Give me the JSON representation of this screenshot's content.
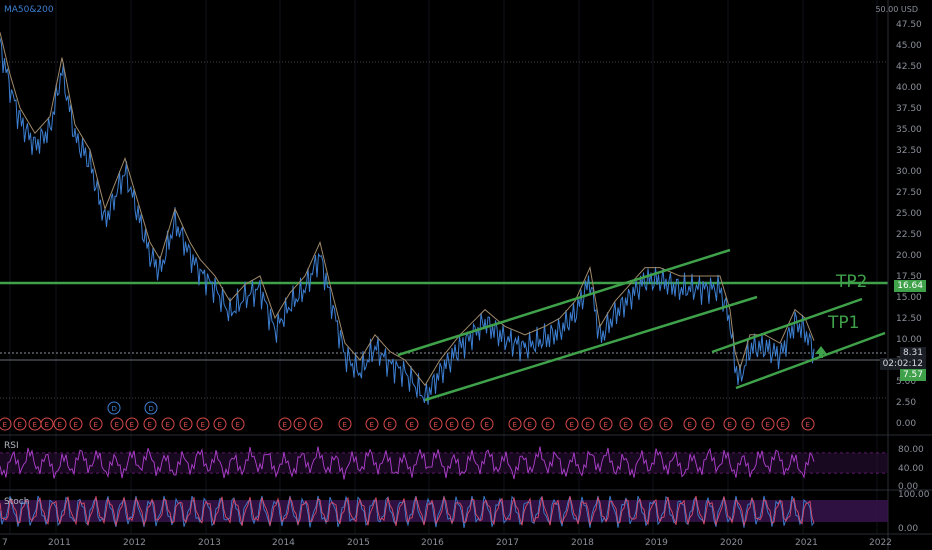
{
  "header": {
    "indicator_label": "MA50&200",
    "currency_label": "50.00 USD"
  },
  "price_axis": {
    "ticks": [
      "47.50",
      "45.00",
      "42.50",
      "40.00",
      "37.50",
      "35.00",
      "32.50",
      "30.00",
      "27.50",
      "25.00",
      "22.50",
      "20.00",
      "17.50",
      "15.00",
      "12.50",
      "10.00",
      "7.50",
      "5.00",
      "2.50",
      "0.00"
    ],
    "ticks_values": [
      47.5,
      45,
      42.5,
      40,
      37.5,
      35,
      32.5,
      30,
      27.5,
      25,
      22.5,
      20,
      17.5,
      15,
      12.5,
      10,
      7.5,
      5,
      2.5,
      0
    ]
  },
  "time_axis": {
    "labels": [
      "7",
      "2011",
      "2012",
      "2013",
      "2014",
      "2015",
      "2016",
      "2017",
      "2018",
      "2019",
      "2020",
      "2021",
      "2022"
    ]
  },
  "annotations": {
    "tp2": {
      "text": "TP2",
      "level": 16.64,
      "tag": "16.64"
    },
    "tp1": {
      "text": "TP1"
    },
    "current_price": {
      "tag": "8.31",
      "countdown": "02:02:12"
    },
    "support": {
      "tag": "7.57"
    }
  },
  "events": {
    "marker_label": "E",
    "dividend_label": "D"
  },
  "rsi_panel": {
    "title": "RSI",
    "ticks": [
      "80.00",
      "40.00",
      "0.00"
    ]
  },
  "stoch_panel": {
    "title": "Stoch",
    "ticks": [
      "100.00",
      "0.00"
    ]
  },
  "colors": {
    "background": "#000000",
    "price_line": "#3d7fd1",
    "ma_line": "#a08a6a",
    "channel": "#3fa14a",
    "rsi": "#9c27b0",
    "stoch_fill": "#3a1550",
    "event_marker": "#d84a4a",
    "dividend_marker": "#3d7fd1"
  }
}
